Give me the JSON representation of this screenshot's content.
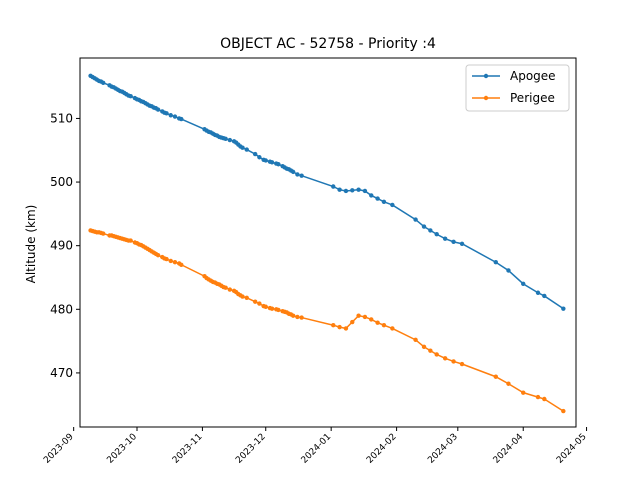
{
  "chart_data": {
    "type": "line",
    "title": "OBJECT AC - 52758 - Priority :4",
    "xlabel": "",
    "ylabel": "Altitude (km)",
    "xlim": [
      "2023-09-04",
      "2024-04-26"
    ],
    "ylim": [
      461.5,
      519.5
    ],
    "x_ticks": [
      "2023-09",
      "2023-10",
      "2023-11",
      "2023-12",
      "2024-01",
      "2024-02",
      "2024-03",
      "2024-04",
      "2024-05"
    ],
    "y_ticks": [
      470,
      480,
      490,
      500,
      510
    ],
    "grid": false,
    "legend_position": "top-right",
    "series": [
      {
        "name": "Apogee",
        "color": "#1f77b4",
        "marker": "circle",
        "points": [
          [
            "2023-09-09",
            516.7
          ],
          [
            "2023-09-10",
            516.5
          ],
          [
            "2023-09-11",
            516.3
          ],
          [
            "2023-09-12",
            516.1
          ],
          [
            "2023-09-13",
            515.9
          ],
          [
            "2023-09-14",
            515.8
          ],
          [
            "2023-09-15",
            515.6
          ],
          [
            "2023-09-18",
            515.2
          ],
          [
            "2023-09-19",
            515.0
          ],
          [
            "2023-09-20",
            514.9
          ],
          [
            "2023-09-21",
            514.7
          ],
          [
            "2023-09-22",
            514.5
          ],
          [
            "2023-09-23",
            514.3
          ],
          [
            "2023-09-24",
            514.2
          ],
          [
            "2023-09-25",
            514.0
          ],
          [
            "2023-09-26",
            513.8
          ],
          [
            "2023-09-27",
            513.6
          ],
          [
            "2023-09-28",
            513.5
          ],
          [
            "2023-09-30",
            513.2
          ],
          [
            "2023-10-01",
            513.0
          ],
          [
            "2023-10-02",
            512.9
          ],
          [
            "2023-10-03",
            512.7
          ],
          [
            "2023-10-04",
            512.6
          ],
          [
            "2023-10-05",
            512.4
          ],
          [
            "2023-10-06",
            512.2
          ],
          [
            "2023-10-07",
            512.0
          ],
          [
            "2023-10-08",
            511.9
          ],
          [
            "2023-10-09",
            511.7
          ],
          [
            "2023-10-10",
            511.6
          ],
          [
            "2023-10-11",
            511.4
          ],
          [
            "2023-10-13",
            511.1
          ],
          [
            "2023-10-14",
            510.9
          ],
          [
            "2023-10-15",
            510.8
          ],
          [
            "2023-10-17",
            510.5
          ],
          [
            "2023-10-19",
            510.3
          ],
          [
            "2023-10-21",
            510.0
          ],
          [
            "2023-10-22",
            509.9
          ],
          [
            "2023-11-02",
            508.3
          ],
          [
            "2023-11-03",
            508.1
          ],
          [
            "2023-11-04",
            507.9
          ],
          [
            "2023-11-05",
            507.8
          ],
          [
            "2023-11-06",
            507.6
          ],
          [
            "2023-11-07",
            507.4
          ],
          [
            "2023-11-08",
            507.3
          ],
          [
            "2023-11-09",
            507.1
          ],
          [
            "2023-11-10",
            507.0
          ],
          [
            "2023-11-11",
            506.9
          ],
          [
            "2023-11-12",
            506.8
          ],
          [
            "2023-11-14",
            506.6
          ],
          [
            "2023-11-16",
            506.4
          ],
          [
            "2023-11-17",
            506.2
          ],
          [
            "2023-11-18",
            505.9
          ],
          [
            "2023-11-19",
            505.6
          ],
          [
            "2023-11-20",
            505.4
          ],
          [
            "2023-11-22",
            505.1
          ],
          [
            "2023-11-26",
            504.4
          ],
          [
            "2023-11-28",
            503.9
          ],
          [
            "2023-11-30",
            503.5
          ],
          [
            "2023-12-01",
            503.4
          ],
          [
            "2023-12-03",
            503.2
          ],
          [
            "2023-12-04",
            503.1
          ],
          [
            "2023-12-06",
            502.9
          ],
          [
            "2023-12-07",
            502.8
          ],
          [
            "2023-12-09",
            502.5
          ],
          [
            "2023-12-10",
            502.3
          ],
          [
            "2023-12-11",
            502.1
          ],
          [
            "2023-12-12",
            502.0
          ],
          [
            "2023-12-13",
            501.8
          ],
          [
            "2023-12-14",
            501.6
          ],
          [
            "2023-12-16",
            501.2
          ],
          [
            "2023-12-18",
            501.0
          ],
          [
            "2024-01-02",
            499.3
          ],
          [
            "2024-01-05",
            498.8
          ],
          [
            "2024-01-08",
            498.6
          ],
          [
            "2024-01-11",
            498.7
          ],
          [
            "2024-01-14",
            498.8
          ],
          [
            "2024-01-17",
            498.6
          ],
          [
            "2024-01-20",
            497.9
          ],
          [
            "2024-01-23",
            497.4
          ],
          [
            "2024-01-26",
            496.9
          ],
          [
            "2024-01-30",
            496.4
          ],
          [
            "2024-02-10",
            494.1
          ],
          [
            "2024-02-14",
            493.0
          ],
          [
            "2024-02-17",
            492.4
          ],
          [
            "2024-02-20",
            491.8
          ],
          [
            "2024-02-24",
            491.1
          ],
          [
            "2024-02-28",
            490.6
          ],
          [
            "2024-03-03",
            490.3
          ],
          [
            "2024-03-19",
            487.4
          ],
          [
            "2024-03-25",
            486.1
          ],
          [
            "2024-04-01",
            484.0
          ],
          [
            "2024-04-08",
            482.6
          ],
          [
            "2024-04-11",
            482.1
          ],
          [
            "2024-04-20",
            480.1
          ]
        ]
      },
      {
        "name": "Perigee",
        "color": "#ff7f0e",
        "marker": "circle",
        "points": [
          [
            "2023-09-09",
            492.4
          ],
          [
            "2023-09-10",
            492.3
          ],
          [
            "2023-09-11",
            492.2
          ],
          [
            "2023-09-12",
            492.1
          ],
          [
            "2023-09-13",
            492.1
          ],
          [
            "2023-09-14",
            492.0
          ],
          [
            "2023-09-15",
            491.9
          ],
          [
            "2023-09-18",
            491.6
          ],
          [
            "2023-09-19",
            491.6
          ],
          [
            "2023-09-20",
            491.5
          ],
          [
            "2023-09-21",
            491.4
          ],
          [
            "2023-09-22",
            491.3
          ],
          [
            "2023-09-23",
            491.2
          ],
          [
            "2023-09-24",
            491.1
          ],
          [
            "2023-09-25",
            491.0
          ],
          [
            "2023-09-26",
            490.9
          ],
          [
            "2023-09-27",
            490.8
          ],
          [
            "2023-09-28",
            490.8
          ],
          [
            "2023-09-30",
            490.5
          ],
          [
            "2023-10-01",
            490.4
          ],
          [
            "2023-10-02",
            490.2
          ],
          [
            "2023-10-03",
            490.1
          ],
          [
            "2023-10-04",
            489.9
          ],
          [
            "2023-10-05",
            489.7
          ],
          [
            "2023-10-06",
            489.5
          ],
          [
            "2023-10-07",
            489.3
          ],
          [
            "2023-10-08",
            489.1
          ],
          [
            "2023-10-09",
            488.9
          ],
          [
            "2023-10-10",
            488.7
          ],
          [
            "2023-10-11",
            488.5
          ],
          [
            "2023-10-13",
            488.2
          ],
          [
            "2023-10-14",
            488.0
          ],
          [
            "2023-10-15",
            487.9
          ],
          [
            "2023-10-17",
            487.6
          ],
          [
            "2023-10-19",
            487.4
          ],
          [
            "2023-10-21",
            487.2
          ],
          [
            "2023-10-22",
            487.0
          ],
          [
            "2023-11-02",
            485.2
          ],
          [
            "2023-11-03",
            484.9
          ],
          [
            "2023-11-04",
            484.7
          ],
          [
            "2023-11-05",
            484.5
          ],
          [
            "2023-11-06",
            484.3
          ],
          [
            "2023-11-07",
            484.2
          ],
          [
            "2023-11-08",
            484.0
          ],
          [
            "2023-11-09",
            483.9
          ],
          [
            "2023-11-10",
            483.7
          ],
          [
            "2023-11-11",
            483.5
          ],
          [
            "2023-11-12",
            483.4
          ],
          [
            "2023-11-14",
            483.1
          ],
          [
            "2023-11-16",
            482.9
          ],
          [
            "2023-11-17",
            482.7
          ],
          [
            "2023-11-18",
            482.4
          ],
          [
            "2023-11-19",
            482.2
          ],
          [
            "2023-11-20",
            482.0
          ],
          [
            "2023-11-22",
            481.8
          ],
          [
            "2023-11-26",
            481.2
          ],
          [
            "2023-11-28",
            480.9
          ],
          [
            "2023-11-30",
            480.5
          ],
          [
            "2023-12-01",
            480.4
          ],
          [
            "2023-12-03",
            480.2
          ],
          [
            "2023-12-04",
            480.1
          ],
          [
            "2023-12-06",
            480.0
          ],
          [
            "2023-12-07",
            479.9
          ],
          [
            "2023-12-09",
            479.7
          ],
          [
            "2023-12-10",
            479.6
          ],
          [
            "2023-12-11",
            479.5
          ],
          [
            "2023-12-12",
            479.3
          ],
          [
            "2023-12-13",
            479.2
          ],
          [
            "2023-12-14",
            479.0
          ],
          [
            "2023-12-16",
            478.8
          ],
          [
            "2023-12-18",
            478.7
          ],
          [
            "2024-01-02",
            477.5
          ],
          [
            "2024-01-05",
            477.2
          ],
          [
            "2024-01-08",
            477.0
          ],
          [
            "2024-01-11",
            478.0
          ],
          [
            "2024-01-14",
            479.0
          ],
          [
            "2024-01-17",
            478.8
          ],
          [
            "2024-01-20",
            478.4
          ],
          [
            "2024-01-23",
            477.9
          ],
          [
            "2024-01-26",
            477.5
          ],
          [
            "2024-01-30",
            477.0
          ],
          [
            "2024-02-10",
            475.2
          ],
          [
            "2024-02-14",
            474.1
          ],
          [
            "2024-02-17",
            473.5
          ],
          [
            "2024-02-20",
            472.9
          ],
          [
            "2024-02-24",
            472.3
          ],
          [
            "2024-02-28",
            471.8
          ],
          [
            "2024-03-03",
            471.4
          ],
          [
            "2024-03-19",
            469.4
          ],
          [
            "2024-03-25",
            468.3
          ],
          [
            "2024-04-01",
            466.9
          ],
          [
            "2024-04-08",
            466.2
          ],
          [
            "2024-04-11",
            465.9
          ],
          [
            "2024-04-20",
            464.0
          ]
        ]
      }
    ]
  }
}
